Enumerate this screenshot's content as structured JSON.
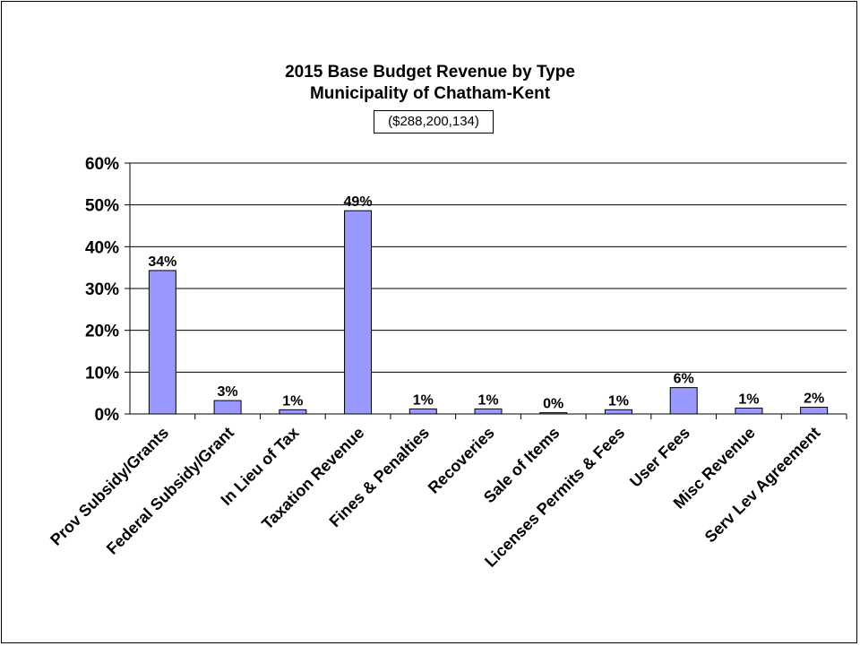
{
  "chart_data": {
    "type": "bar",
    "title": "2015 Base Budget Revenue by Type",
    "subtitle": "Municipality of Chatham-Kent",
    "total_label": "($288,200,134)",
    "categories": [
      "Prov Subsidy/Grants",
      "Federal Subsidy/Grant",
      "In Lieu of Tax",
      "Taxation Revenue",
      "Fines & Penalties",
      "Recoveries",
      "Sale of Items",
      "Licenses Permits & Fees",
      "User Fees",
      "Misc Revenue",
      "Serv Lev Agreement"
    ],
    "values": [
      34.3,
      3.2,
      1.0,
      48.6,
      1.2,
      1.2,
      0.3,
      1.0,
      6.3,
      1.4,
      1.6
    ],
    "data_labels": [
      "34%",
      "3%",
      "1%",
      "49%",
      "1%",
      "1%",
      "0%",
      "1%",
      "6%",
      "1%",
      "2%"
    ],
    "yticks": [
      "0%",
      "10%",
      "20%",
      "30%",
      "40%",
      "50%",
      "60%"
    ],
    "ylim": [
      0,
      60
    ],
    "grid": true,
    "bar_color": "#9999ff",
    "legend": "none"
  }
}
